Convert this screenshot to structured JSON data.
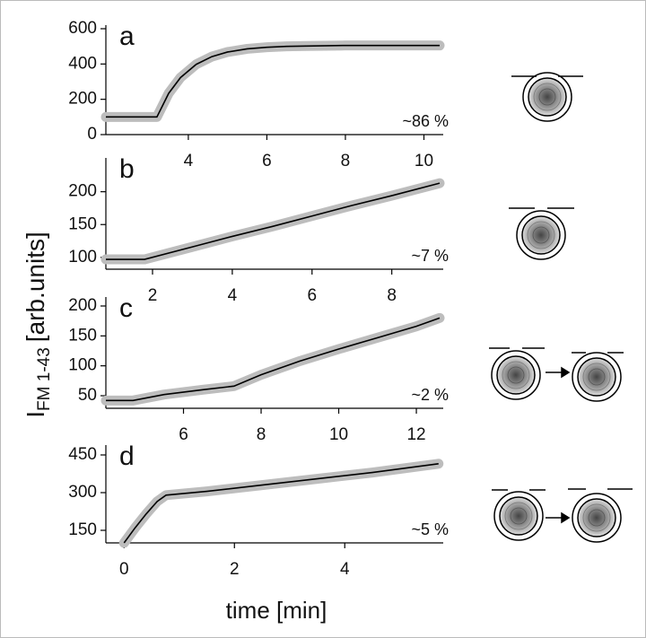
{
  "figure": {
    "xlabel": "time [min]",
    "ylabel_main": "I",
    "ylabel_sub": "FM 1-43",
    "ylabel_unit": "[arb.units]"
  },
  "chart_data": [
    {
      "type": "line",
      "panel": "a",
      "annotation": "~86 %",
      "color": "#000000",
      "marker_color": "#bdbdbd",
      "x": [
        1.9,
        2.5,
        3.0,
        3.2,
        3.5,
        3.8,
        4.2,
        4.6,
        5.0,
        5.5,
        6.0,
        6.5,
        7.0,
        8.0,
        9.0,
        10.4
      ],
      "values": [
        100,
        100,
        100,
        100,
        234,
        323,
        398,
        442,
        468,
        486,
        495,
        500,
        502,
        505,
        505,
        505
      ],
      "xlim": [
        1.9,
        10.4
      ],
      "xticks": [
        4,
        6,
        8,
        10
      ],
      "ylim": [
        0,
        600
      ],
      "yticks": [
        0,
        200,
        400,
        600
      ]
    },
    {
      "type": "line",
      "panel": "b",
      "annotation": "~7 %",
      "color": "#000000",
      "marker_color": "#bdbdbd",
      "x": [
        0.83,
        1.8,
        3,
        4,
        5,
        6,
        7,
        8,
        9.2
      ],
      "values": [
        97,
        97,
        116,
        132,
        147,
        163,
        179,
        194,
        213
      ],
      "xlim": [
        0.83,
        9.2
      ],
      "xticks": [
        2,
        4,
        6,
        8
      ],
      "ylim": [
        82,
        246
      ],
      "yticks": [
        100,
        150,
        200
      ]
    },
    {
      "type": "line",
      "panel": "c",
      "annotation": "~2 %",
      "color": "#000000",
      "marker_color": "#bdbdbd",
      "x": [
        4,
        4.7,
        5.5,
        6.5,
        7.3,
        8,
        9,
        10,
        11,
        12,
        12.6
      ],
      "values": [
        42,
        42,
        52,
        60,
        66,
        85,
        108,
        128,
        147,
        166,
        180
      ],
      "xlim": [
        4,
        12.6
      ],
      "xticks": [
        6,
        8,
        10,
        12
      ],
      "ylim": [
        29,
        209
      ],
      "yticks": [
        50,
        100,
        150,
        200
      ]
    },
    {
      "type": "line",
      "panel": "d",
      "annotation": "~5 %",
      "color": "#000000",
      "marker_color": "#bdbdbd",
      "x": [
        0,
        0.2,
        0.4,
        0.6,
        0.76,
        1.5,
        2.5,
        3.5,
        4.5,
        5.7
      ],
      "values": [
        100,
        160,
        215,
        265,
        290,
        305,
        330,
        355,
        380,
        415
      ],
      "xlim": [
        -0.33,
        5.72
      ],
      "xticks": [
        0,
        2,
        4
      ],
      "ylim": [
        100,
        475
      ],
      "yticks": [
        150,
        300,
        450
      ]
    }
  ]
}
